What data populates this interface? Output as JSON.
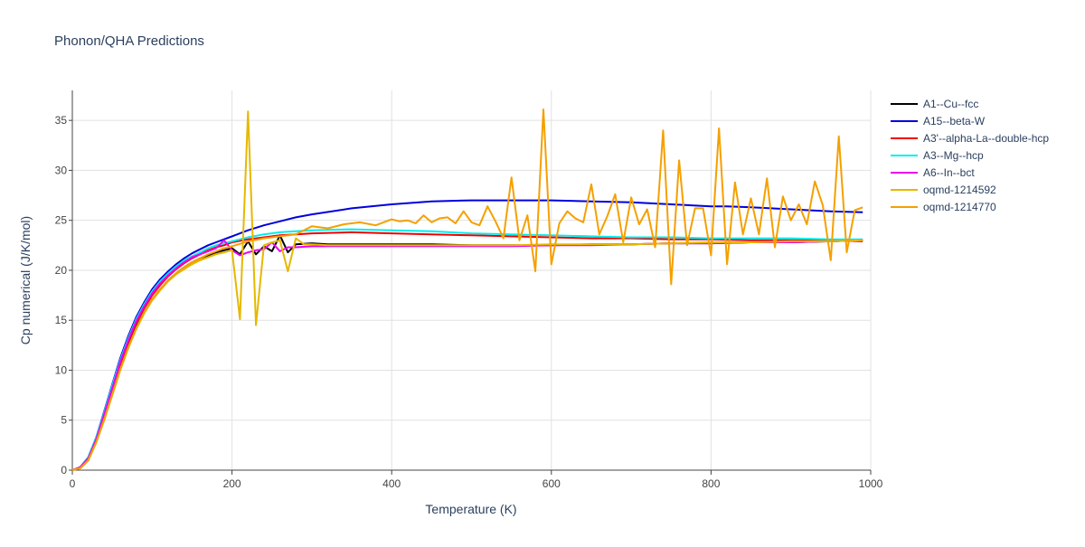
{
  "chart_data": {
    "type": "line",
    "title": "Phonon/QHA Predictions",
    "xlabel": "Temperature (K)",
    "ylabel": "Cp numerical (J/K/mol)",
    "xlim": [
      0,
      1000
    ],
    "ylim": [
      0,
      38
    ],
    "xticks": [
      0,
      200,
      400,
      600,
      800,
      1000
    ],
    "yticks": [
      0,
      5,
      10,
      15,
      20,
      25,
      30,
      35
    ],
    "grid": true,
    "legend_position": "top-right",
    "series": [
      {
        "name": "A1--Cu--fcc",
        "color": "#000000",
        "x": [
          0,
          10,
          20,
          30,
          40,
          50,
          60,
          70,
          80,
          90,
          100,
          110,
          120,
          130,
          140,
          150,
          160,
          170,
          180,
          190,
          200,
          210,
          220,
          230,
          240,
          250,
          260,
          270,
          280,
          300,
          320,
          340,
          360,
          380,
          400,
          450,
          500,
          550,
          600,
          650,
          700,
          750,
          800,
          850,
          900,
          950,
          990
        ],
        "y": [
          0,
          0.2,
          1.0,
          2.9,
          5.2,
          7.7,
          10.2,
          12.4,
          14.3,
          15.8,
          17.1,
          18.1,
          19.0,
          19.7,
          20.3,
          20.8,
          21.2,
          21.5,
          21.8,
          22.0,
          22.2,
          21.6,
          22.9,
          21.6,
          22.4,
          21.9,
          23.5,
          21.8,
          22.6,
          22.7,
          22.6,
          22.6,
          22.6,
          22.6,
          22.6,
          22.6,
          22.5,
          22.5,
          22.5,
          22.6,
          22.6,
          22.7,
          22.7,
          22.8,
          22.8,
          22.9,
          23.0
        ]
      },
      {
        "name": "A15--beta-W",
        "color": "#0000dd",
        "x": [
          0,
          10,
          20,
          30,
          40,
          50,
          60,
          70,
          80,
          90,
          100,
          110,
          120,
          130,
          140,
          150,
          160,
          170,
          180,
          190,
          200,
          220,
          240,
          260,
          280,
          300,
          350,
          400,
          450,
          500,
          550,
          600,
          650,
          700,
          750,
          800,
          820,
          850,
          900,
          950,
          990
        ],
        "y": [
          0,
          0.3,
          1.3,
          3.3,
          5.9,
          8.6,
          11.2,
          13.4,
          15.3,
          16.8,
          18.1,
          19.1,
          19.9,
          20.6,
          21.2,
          21.7,
          22.1,
          22.5,
          22.8,
          23.1,
          23.4,
          24.0,
          24.5,
          24.9,
          25.3,
          25.6,
          26.2,
          26.6,
          26.9,
          27.0,
          27.0,
          27.0,
          26.9,
          26.8,
          26.6,
          26.4,
          26.4,
          26.3,
          26.1,
          25.9,
          25.8
        ]
      },
      {
        "name": "A3'--alpha-La--double-hcp",
        "color": "#ee0000",
        "x": [
          0,
          10,
          20,
          30,
          40,
          50,
          60,
          70,
          80,
          90,
          100,
          110,
          120,
          130,
          140,
          150,
          160,
          170,
          180,
          190,
          200,
          220,
          240,
          260,
          280,
          300,
          350,
          400,
          450,
          500,
          550,
          600,
          650,
          700,
          750,
          800,
          850,
          900,
          950,
          990
        ],
        "y": [
          0,
          0.3,
          1.2,
          3.1,
          5.5,
          8.1,
          10.6,
          12.8,
          14.7,
          16.2,
          17.5,
          18.5,
          19.4,
          20.1,
          20.7,
          21.2,
          21.6,
          22.0,
          22.3,
          22.5,
          22.8,
          23.1,
          23.3,
          23.5,
          23.6,
          23.7,
          23.8,
          23.7,
          23.6,
          23.5,
          23.4,
          23.3,
          23.2,
          23.2,
          23.1,
          23.1,
          23.0,
          23.0,
          23.0,
          22.9
        ]
      },
      {
        "name": "A3--Mg--hcp",
        "color": "#00eeee",
        "x": [
          0,
          10,
          20,
          30,
          40,
          50,
          60,
          70,
          80,
          90,
          100,
          110,
          120,
          130,
          140,
          150,
          160,
          170,
          180,
          190,
          200,
          220,
          240,
          260,
          280,
          300,
          350,
          400,
          450,
          500,
          550,
          600,
          650,
          700,
          750,
          800,
          850,
          900,
          950,
          990
        ],
        "y": [
          0,
          0.3,
          1.3,
          3.3,
          5.8,
          8.5,
          11.0,
          13.2,
          15.1,
          16.6,
          17.9,
          18.9,
          19.7,
          20.4,
          21.0,
          21.4,
          21.8,
          22.2,
          22.5,
          22.7,
          22.9,
          23.3,
          23.6,
          23.8,
          23.9,
          24.0,
          24.1,
          24.0,
          23.9,
          23.7,
          23.6,
          23.5,
          23.4,
          23.3,
          23.3,
          23.2,
          23.2,
          23.2,
          23.1,
          23.1
        ]
      },
      {
        "name": "A6--In--bct",
        "color": "#ee00ee",
        "x": [
          0,
          10,
          20,
          30,
          40,
          50,
          60,
          70,
          80,
          90,
          100,
          110,
          120,
          130,
          140,
          150,
          160,
          170,
          180,
          190,
          200,
          210,
          220,
          230,
          240,
          250,
          260,
          270,
          280,
          300,
          350,
          400,
          450,
          500,
          550,
          600,
          650,
          700,
          750,
          800,
          850,
          900,
          950,
          990
        ],
        "y": [
          0,
          0.3,
          1.2,
          3.1,
          5.6,
          8.2,
          10.8,
          13.0,
          14.9,
          16.4,
          17.7,
          18.7,
          19.5,
          20.2,
          20.8,
          21.3,
          21.6,
          21.9,
          22.2,
          23.0,
          22.0,
          21.5,
          21.8,
          22.0,
          22.1,
          22.8,
          21.9,
          22.3,
          22.3,
          22.4,
          22.4,
          22.4,
          22.4,
          22.4,
          22.4,
          22.5,
          22.5,
          22.6,
          22.7,
          22.7,
          22.8,
          22.8,
          22.9,
          23.0
        ]
      },
      {
        "name": "oqmd-1214592",
        "color": "#e6b800",
        "x": [
          0,
          10,
          20,
          30,
          40,
          50,
          60,
          70,
          80,
          90,
          100,
          110,
          120,
          130,
          140,
          150,
          160,
          170,
          180,
          190,
          200,
          210,
          220,
          230,
          240,
          250,
          260,
          270,
          280,
          290,
          300,
          320,
          340,
          360,
          380,
          400,
          450,
          500,
          550,
          600,
          650,
          700,
          750,
          800,
          850,
          900,
          950,
          990
        ],
        "y": [
          0,
          0.2,
          1.0,
          2.8,
          5.0,
          7.5,
          10.0,
          12.2,
          14.1,
          15.7,
          17.0,
          18.0,
          18.9,
          19.6,
          20.1,
          20.6,
          21.0,
          21.3,
          21.6,
          21.8,
          22.0,
          15.1,
          35.9,
          14.5,
          22.5,
          22.8,
          23.0,
          19.9,
          23.2,
          22.6,
          22.6,
          22.5,
          22.5,
          22.5,
          22.5,
          22.5,
          22.5,
          22.5,
          22.5,
          22.6,
          22.6,
          22.6,
          22.7,
          22.8,
          22.8,
          22.9,
          22.9,
          23.0
        ]
      },
      {
        "name": "oqmd-1214770",
        "color": "#f5a000",
        "x": [
          0,
          10,
          20,
          30,
          40,
          50,
          60,
          70,
          80,
          90,
          100,
          110,
          120,
          130,
          140,
          150,
          160,
          170,
          180,
          190,
          200,
          220,
          240,
          260,
          280,
          300,
          320,
          340,
          360,
          380,
          400,
          410,
          420,
          430,
          440,
          450,
          460,
          470,
          480,
          490,
          500,
          510,
          520,
          530,
          540,
          550,
          560,
          570,
          580,
          590,
          600,
          610,
          620,
          630,
          640,
          650,
          660,
          670,
          680,
          690,
          700,
          710,
          720,
          730,
          740,
          750,
          760,
          770,
          780,
          790,
          800,
          810,
          820,
          830,
          840,
          850,
          860,
          870,
          880,
          890,
          900,
          910,
          920,
          930,
          940,
          950,
          960,
          970,
          980,
          990
        ],
        "y": [
          0,
          0.2,
          1.0,
          2.8,
          5.1,
          7.6,
          10.1,
          12.3,
          14.2,
          15.8,
          17.1,
          18.1,
          19.0,
          19.7,
          20.3,
          20.8,
          21.2,
          21.6,
          21.9,
          22.2,
          22.4,
          22.9,
          23.2,
          23.4,
          23.6,
          24.4,
          24.2,
          24.6,
          24.8,
          24.5,
          25.1,
          24.9,
          25.0,
          24.7,
          25.5,
          24.8,
          25.2,
          25.3,
          24.7,
          25.9,
          24.8,
          24.5,
          26.4,
          24.9,
          23.2,
          29.3,
          23.0,
          25.5,
          19.9,
          36.1,
          20.6,
          24.7,
          25.9,
          25.2,
          24.8,
          28.6,
          23.6,
          25.4,
          27.6,
          22.8,
          27.3,
          24.6,
          26.1,
          22.3,
          34.0,
          18.6,
          31.0,
          22.5,
          26.2,
          26.2,
          21.5,
          34.2,
          20.6,
          28.8,
          23.6,
          27.2,
          23.6,
          29.2,
          22.3,
          27.4,
          25.0,
          26.6,
          24.6,
          28.9,
          26.5,
          21.0,
          33.4,
          21.8,
          26.0,
          26.3
        ]
      }
    ]
  }
}
